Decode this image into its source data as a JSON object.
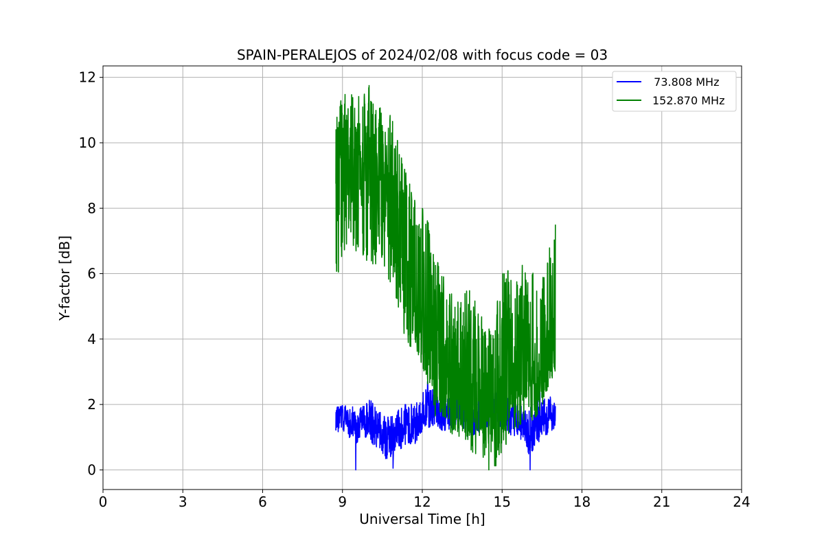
{
  "chart_data": {
    "type": "line",
    "title": "SPAIN-PERALEJOS of 2024/02/08 with focus code = 03",
    "xlabel": "Universal Time [h]",
    "ylabel": "Y-factor [dB]",
    "xlim": [
      0,
      24
    ],
    "ylim": [
      -0.6,
      12.35
    ],
    "xticks": [
      0,
      3,
      6,
      9,
      12,
      15,
      18,
      21,
      24
    ],
    "yticks": [
      0,
      2,
      4,
      6,
      8,
      10,
      12
    ],
    "grid": true,
    "legend_position": "top-right",
    "series": [
      {
        "name": "  73.808 MHz",
        "color": "#0000ff",
        "x": [
          8.75,
          9.0,
          9.25,
          9.5,
          9.75,
          10.0,
          10.25,
          10.5,
          10.75,
          11.0,
          11.25,
          11.5,
          11.75,
          12.0,
          12.25,
          12.5,
          12.75,
          13.0,
          13.25,
          13.5,
          13.75,
          14.0,
          14.25,
          14.5,
          14.75,
          15.0,
          15.25,
          15.5,
          15.75,
          16.0,
          16.25,
          16.5,
          16.75,
          17.0
        ],
        "y": [
          1.5,
          1.6,
          1.5,
          1.3,
          1.5,
          1.6,
          1.3,
          1.0,
          0.9,
          1.0,
          1.3,
          1.4,
          1.3,
          1.7,
          1.8,
          1.9,
          1.7,
          1.6,
          1.8,
          1.6,
          1.5,
          1.6,
          1.7,
          1.8,
          1.9,
          1.8,
          1.6,
          1.5,
          1.4,
          1.2,
          1.3,
          1.5,
          1.6,
          1.6
        ],
        "min_values": [
          1.2,
          1.1,
          1.0,
          0.8,
          1.0,
          1.0,
          0.6,
          0.4,
          0.2,
          0.3,
          0.7,
          0.8,
          0.8,
          1.2,
          1.3,
          1.4,
          1.2,
          1.1,
          1.3,
          1.1,
          1.0,
          1.1,
          1.2,
          1.3,
          1.4,
          1.3,
          1.1,
          1.0,
          0.9,
          0.4,
          0.7,
          1.0,
          1.1,
          1.2
        ],
        "max_values": [
          1.9,
          2.0,
          2.0,
          1.9,
          2.0,
          2.2,
          1.9,
          1.7,
          1.6,
          1.7,
          2.0,
          2.1,
          2.0,
          2.4,
          2.6,
          2.5,
          2.3,
          2.2,
          2.4,
          2.3,
          2.1,
          2.2,
          2.3,
          2.4,
          2.5,
          2.4,
          2.2,
          2.1,
          2.0,
          1.9,
          2.1,
          2.5,
          2.3,
          2.1
        ],
        "extremes": [
          {
            "x": 9.5,
            "y": 0.0
          },
          {
            "x": 10.9,
            "y": 0.05
          },
          {
            "x": 16.05,
            "y": 0.0
          },
          {
            "x": 12.2,
            "y": 2.7
          }
        ]
      },
      {
        "name": "152.870 MHz",
        "color": "#008000",
        "x": [
          8.75,
          9.0,
          9.25,
          9.5,
          9.75,
          10.0,
          10.25,
          10.5,
          10.75,
          11.0,
          11.25,
          11.5,
          11.75,
          12.0,
          12.25,
          12.5,
          12.75,
          13.0,
          13.25,
          13.5,
          13.75,
          14.0,
          14.25,
          14.5,
          14.75,
          15.0,
          15.25,
          15.5,
          15.75,
          16.0,
          16.25,
          16.5,
          16.75,
          17.0
        ],
        "y": [
          9.0,
          9.3,
          9.5,
          9.4,
          9.2,
          9.0,
          8.9,
          8.6,
          8.3,
          7.8,
          6.5,
          5.5,
          4.8,
          4.2,
          3.9,
          3.4,
          3.0,
          2.8,
          2.7,
          2.6,
          2.5,
          2.3,
          2.1,
          2.0,
          2.1,
          2.5,
          2.8,
          2.9,
          3.0,
          2.9,
          3.0,
          3.2,
          3.4,
          3.6
        ],
        "min_values": [
          6.0,
          6.6,
          6.9,
          6.7,
          6.6,
          6.3,
          6.3,
          5.9,
          5.6,
          5.2,
          4.3,
          3.8,
          3.7,
          3.2,
          2.5,
          1.6,
          1.5,
          1.2,
          1.0,
          1.0,
          0.6,
          0.5,
          0.4,
          0.3,
          0.1,
          0.6,
          0.9,
          1.2,
          1.4,
          1.4,
          1.6,
          1.9,
          2.6,
          3.0
        ],
        "max_values": [
          11.0,
          11.4,
          11.6,
          11.5,
          11.4,
          11.7,
          11.2,
          11.0,
          10.9,
          10.5,
          9.4,
          8.8,
          8.2,
          8.0,
          7.5,
          6.5,
          6.0,
          5.5,
          5.2,
          5.3,
          5.6,
          5.2,
          4.8,
          4.4,
          4.8,
          6.0,
          6.1,
          5.8,
          6.3,
          6.0,
          6.2,
          6.7,
          7.2,
          7.5
        ],
        "extremes": [
          {
            "x": 8.85,
            "y": 6.05
          },
          {
            "x": 10.0,
            "y": 11.75
          },
          {
            "x": 14.5,
            "y": 0.0
          },
          {
            "x": 17.0,
            "y": 7.5
          }
        ]
      }
    ]
  }
}
